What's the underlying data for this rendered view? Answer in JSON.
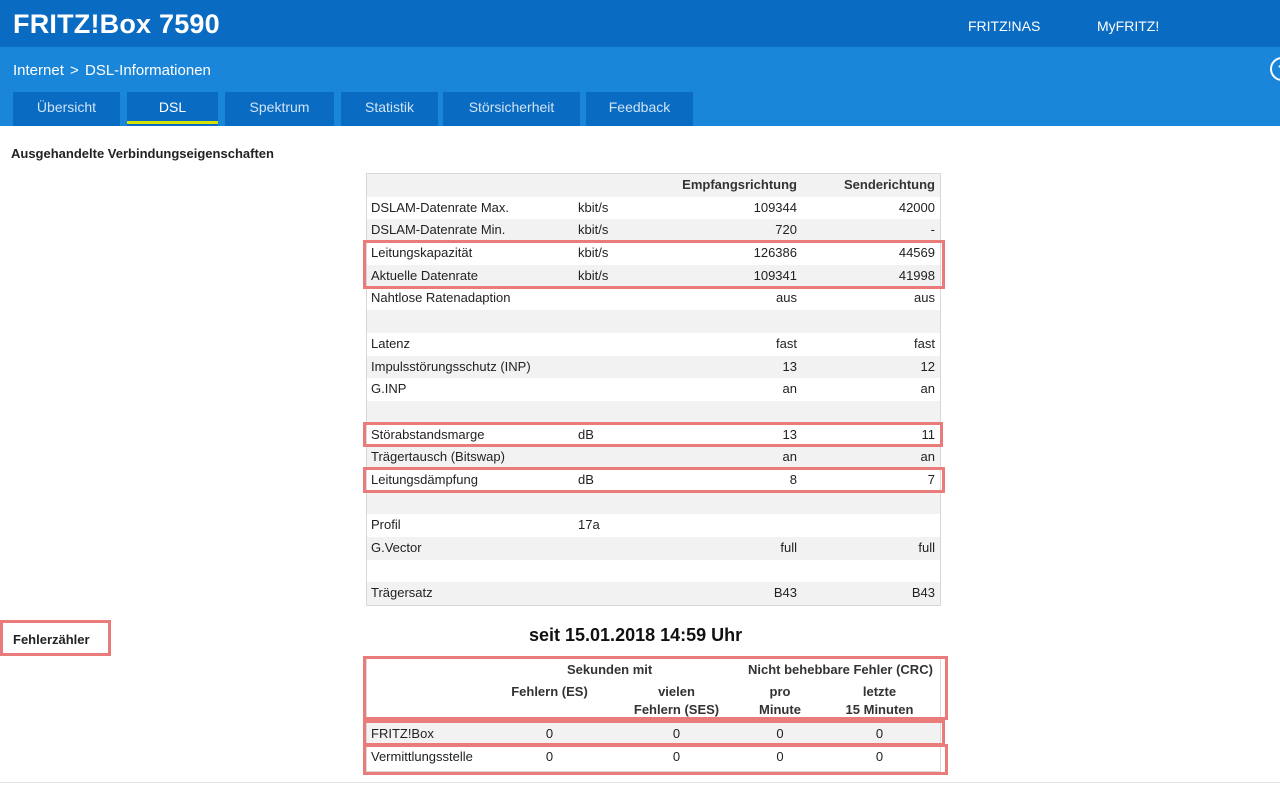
{
  "header": {
    "brand": "FRITZ!Box 7590",
    "links": {
      "nas": "FRITZ!NAS",
      "myfritz": "MyFRITZ!"
    }
  },
  "breadcrumb": {
    "parent": "Internet",
    "separator": ">",
    "current": "DSL-Informationen",
    "help_glyph": "?"
  },
  "tabs": [
    "Übersicht",
    "DSL",
    "Spektrum",
    "Statistik",
    "Störsicherheit",
    "Feedback"
  ],
  "active_tab": "DSL",
  "section": {
    "title": "Ausgehandelte Verbindungseigenschaften"
  },
  "properties": {
    "headers": {
      "label": "",
      "unit": "",
      "rx": "Empfangsrichtung",
      "tx": "Senderichtung"
    },
    "rows": [
      {
        "label": "DSLAM-Datenrate Max.",
        "unit": "kbit/s",
        "rx": "109344",
        "tx": "42000"
      },
      {
        "label": "DSLAM-Datenrate Min.",
        "unit": "kbit/s",
        "rx": "720",
        "tx": "-"
      },
      {
        "label": "Leitungskapazität",
        "unit": "kbit/s",
        "rx": "126386",
        "tx": "44569"
      },
      {
        "label": "Aktuelle Datenrate",
        "unit": "kbit/s",
        "rx": "109341",
        "tx": "41998"
      },
      {
        "label": "Nahtlose Ratenadaption",
        "unit": "",
        "rx": "aus",
        "tx": "aus"
      },
      {
        "label": "",
        "unit": "",
        "rx": "",
        "tx": ""
      },
      {
        "label": "Latenz",
        "unit": "",
        "rx": "fast",
        "tx": "fast"
      },
      {
        "label": "Impulsstörungsschutz (INP)",
        "unit": "",
        "rx": "13",
        "tx": "12"
      },
      {
        "label": "G.INP",
        "unit": "",
        "rx": "an",
        "tx": "an"
      },
      {
        "label": "",
        "unit": "",
        "rx": "",
        "tx": ""
      },
      {
        "label": "Störabstandsmarge",
        "unit": "dB",
        "rx": "13",
        "tx": "11"
      },
      {
        "label": "Trägertausch (Bitswap)",
        "unit": "",
        "rx": "an",
        "tx": "an"
      },
      {
        "label": "Leitungsdämpfung",
        "unit": "dB",
        "rx": "8",
        "tx": "7"
      },
      {
        "label": "",
        "unit": "",
        "rx": "",
        "tx": ""
      },
      {
        "label": "Profil",
        "unit": "17a",
        "rx": "",
        "tx": ""
      },
      {
        "label": "G.Vector",
        "unit": "",
        "rx": "full",
        "tx": "full"
      },
      {
        "label": "",
        "unit": "",
        "rx": "",
        "tx": ""
      },
      {
        "label": "Trägersatz",
        "unit": "",
        "rx": "B43",
        "tx": "B43"
      }
    ]
  },
  "errors": {
    "title": "Fehlerzähler",
    "since": "seit 15.01.2018 14:59 Uhr",
    "group_seconds": "Sekunden mit",
    "group_crc": "Nicht behebbare Fehler (CRC)",
    "col_es": "Fehlern (ES)",
    "col_ses_1": "vielen",
    "col_ses_2": "Fehlern (SES)",
    "col_min_1": "pro",
    "col_min_2": "Minute",
    "col_15_1": "letzte",
    "col_15_2": "15 Minuten",
    "rows": [
      {
        "label": "FRITZ!Box",
        "es": "0",
        "ses": "0",
        "crc_min": "0",
        "crc_15": "0"
      },
      {
        "label": "Vermittlungsstelle",
        "es": "0",
        "ses": "0",
        "crc_min": "0",
        "crc_15": "0"
      }
    ]
  }
}
